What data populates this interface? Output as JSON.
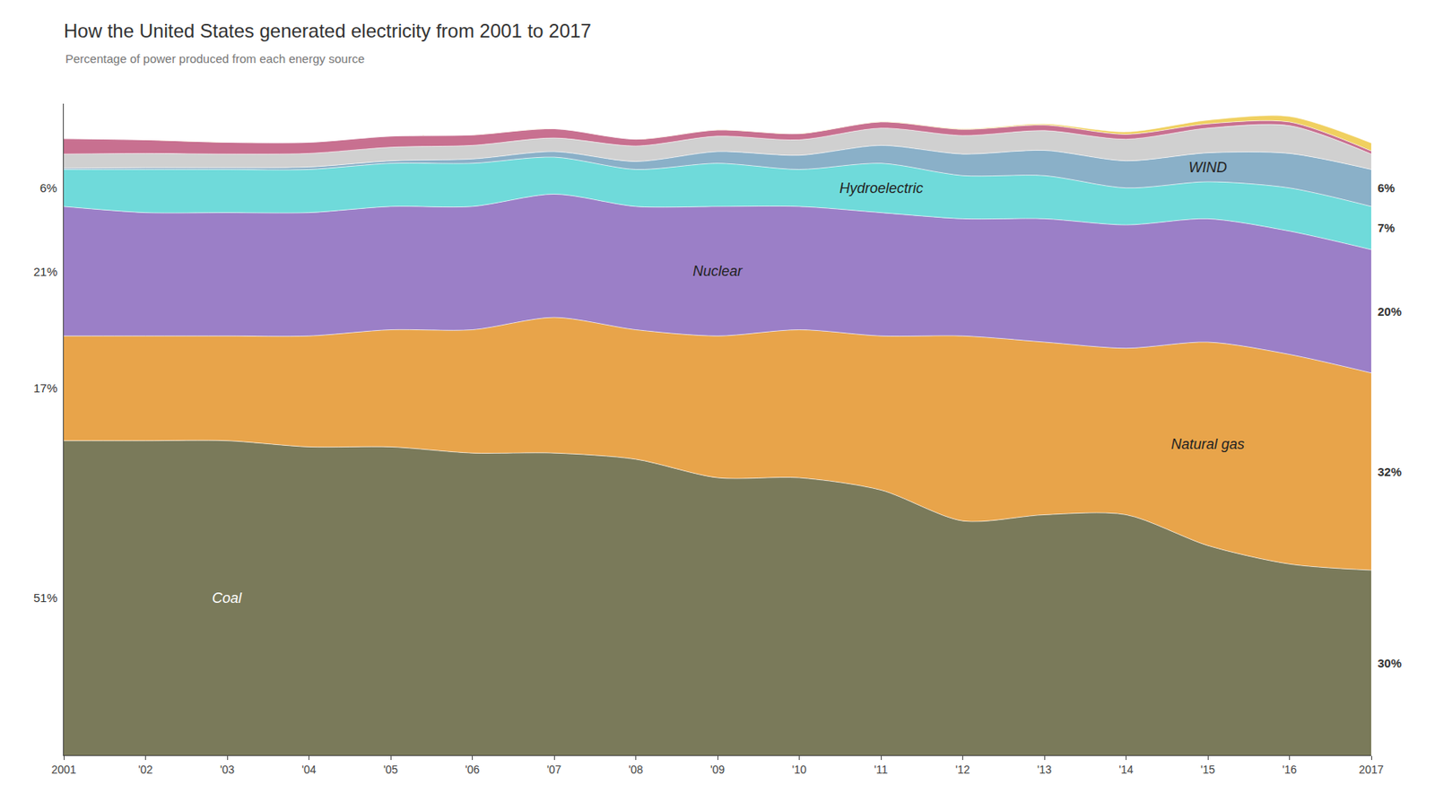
{
  "chart_data": {
    "type": "area",
    "stacked": true,
    "title": "How the United States generated electricity from 2001 to 2017",
    "subtitle": "Percentage of power produced from each energy source",
    "x": [
      2001,
      2002,
      2003,
      2004,
      2005,
      2006,
      2007,
      2008,
      2009,
      2010,
      2011,
      2012,
      2013,
      2014,
      2015,
      2016,
      2017
    ],
    "xlim": [
      2001,
      2017
    ],
    "xticks": [
      2001,
      {
        "value": 2002,
        "label": "'02"
      },
      {
        "value": 2003,
        "label": "'03"
      },
      {
        "value": 2004,
        "label": "'04"
      },
      {
        "value": 2005,
        "label": "'05"
      },
      {
        "value": 2006,
        "label": "'06"
      },
      {
        "value": 2007,
        "label": "'07"
      },
      {
        "value": 2008,
        "label": "'08"
      },
      {
        "value": 2009,
        "label": "'09"
      },
      {
        "value": 2010,
        "label": "'10"
      },
      {
        "value": 2011,
        "label": "'11"
      },
      {
        "value": 2012,
        "label": "'12"
      },
      {
        "value": 2013,
        "label": "'13"
      },
      {
        "value": 2014,
        "label": "'14"
      },
      {
        "value": 2015,
        "label": "'15"
      },
      {
        "value": 2016,
        "label": "'16"
      },
      2017
    ],
    "ylim": [
      0,
      105.672
    ],
    "tick_labels": "x",
    "grid": false,
    "series": [
      {
        "name": "Coal",
        "color": "#7a7a5a",
        "values": [
          51,
          51,
          51,
          50,
          50,
          49,
          49,
          48,
          45,
          45,
          43,
          38,
          39,
          39,
          34,
          31,
          30
        ],
        "value_labels": [
          "51%",
          null,
          null,
          null,
          null,
          null,
          null,
          null,
          null,
          null,
          null,
          null,
          null,
          null,
          null,
          null,
          "30%"
        ]
      },
      {
        "name": "Natural gas",
        "color": "#e8a44a",
        "values": [
          17,
          17,
          17,
          18,
          19,
          20,
          22,
          21,
          23,
          24,
          25,
          30,
          28,
          27,
          33,
          34,
          32
        ],
        "value_labels": [
          "17%",
          null,
          null,
          null,
          null,
          null,
          null,
          null,
          null,
          null,
          null,
          null,
          null,
          null,
          null,
          null,
          "32%"
        ]
      },
      {
        "name": "Nuclear",
        "color": "#9b7fc7",
        "values": [
          21,
          20,
          20,
          20,
          20,
          20,
          20,
          20,
          21,
          20,
          20,
          19,
          20,
          20,
          20,
          20,
          20
        ],
        "value_labels": [
          "21%",
          null,
          null,
          null,
          null,
          null,
          null,
          null,
          null,
          null,
          null,
          null,
          null,
          null,
          null,
          null,
          "20%"
        ]
      },
      {
        "name": "Hydroelectric",
        "color": "#6fdada",
        "values": [
          6,
          7,
          7,
          7,
          7,
          7,
          6,
          6,
          7,
          6,
          8,
          7,
          7,
          6,
          6,
          7,
          7
        ],
        "value_labels": [
          "6%",
          null,
          null,
          null,
          null,
          null,
          null,
          null,
          null,
          null,
          null,
          null,
          null,
          null,
          null,
          null,
          "7%"
        ]
      },
      {
        "name": "WIND",
        "color": "#8ab0c8",
        "values": [
          0.2,
          0.3,
          0.3,
          0.4,
          0.4,
          0.7,
          0.9,
          1.3,
          1.9,
          2.3,
          2.9,
          3.5,
          4.1,
          4.4,
          4.7,
          5.6,
          6
        ],
        "value_labels": [
          null,
          null,
          null,
          null,
          null,
          null,
          null,
          null,
          null,
          null,
          null,
          null,
          null,
          null,
          null,
          null,
          "6%"
        ]
      },
      {
        "color": "#d0d0d0",
        "values": [
          2.3,
          2.3,
          2.2,
          2.2,
          2.2,
          2.2,
          2.2,
          2.5,
          2.5,
          2.5,
          2.8,
          3.0,
          3.2,
          3.5,
          4.0,
          4.5,
          2.5
        ]
      },
      {
        "color": "#c87090",
        "values": [
          2.5,
          2.2,
          1.9,
          1.8,
          1.8,
          1.7,
          1.5,
          1.1,
          1.0,
          1.0,
          1.0,
          1.0,
          0.9,
          0.8,
          0.7,
          0.6,
          0.5
        ]
      },
      {
        "color": "#f0d060",
        "values": [
          0.01,
          0.01,
          0.01,
          0.01,
          0.01,
          0.01,
          0.01,
          0.02,
          0.02,
          0.04,
          0.07,
          0.1,
          0.2,
          0.4,
          0.6,
          0.9,
          1.3
        ]
      }
    ]
  }
}
